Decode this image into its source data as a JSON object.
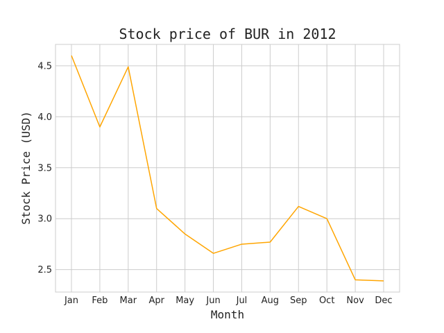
{
  "chart_data": {
    "type": "line",
    "title": "Stock price of BUR in 2012",
    "xlabel": "Month",
    "ylabel": "Stock Price (USD)",
    "categories": [
      "Jan",
      "Feb",
      "Mar",
      "Apr",
      "May",
      "Jun",
      "Jul",
      "Aug",
      "Sep",
      "Oct",
      "Nov",
      "Dec"
    ],
    "series": [
      {
        "values": [
          4.6,
          3.9,
          4.49,
          3.1,
          2.85,
          2.66,
          2.75,
          2.77,
          3.12,
          3.0,
          2.4,
          2.39
        ]
      }
    ],
    "ylim": [
      2.28,
      4.71
    ],
    "yticks": [
      2.5,
      3.0,
      3.5,
      4.0,
      4.5
    ],
    "ytick_labels": [
      "2.5",
      "3.0",
      "3.5",
      "4.0",
      "4.5"
    ],
    "grid": true,
    "line_color": "#ffa500",
    "grid_color": "#cccccc"
  }
}
